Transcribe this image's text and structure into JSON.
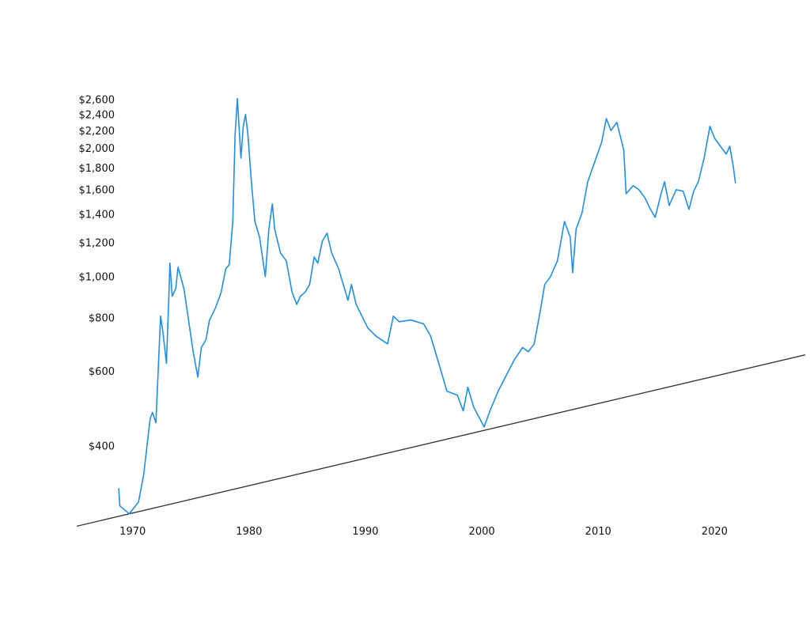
{
  "chart_data": {
    "type": "line",
    "title": "",
    "xlabel": "",
    "ylabel": "",
    "y_scale": "log",
    "xlim": [
      1958.6,
      2028.2
    ],
    "ylim": [
      156,
      4450
    ],
    "grid": false,
    "x_ticks": [
      1970,
      1980,
      1990,
      2000,
      2010,
      2020
    ],
    "x_tick_labels": [
      "1970",
      "1980",
      "1990",
      "2000",
      "2010",
      "2020"
    ],
    "y_ticks": [
      400,
      600,
      800,
      1000,
      1200,
      1400,
      1600,
      1800,
      2000,
      2200,
      2400,
      2600
    ],
    "y_tick_labels": [
      "$400",
      "$600",
      "$800",
      "$1,000",
      "$1,200",
      "$1,400",
      "$1,600",
      "$1,800",
      "$2,000",
      "$2,200",
      "$2,400",
      "$2,600"
    ],
    "series": [
      {
        "color": "#1e8fe6",
        "x": [
          1968.8,
          1968.9,
          1969.7,
          1970.5,
          1970.95,
          1971.5,
          1971.7,
          1972.0,
          1972.4,
          1972.6,
          1972.9,
          1973.1,
          1973.2,
          1973.4,
          1973.7,
          1973.9,
          1974.4,
          1974.9,
          1975.2,
          1975.6,
          1975.9,
          1976.3,
          1976.6,
          1977.1,
          1977.6,
          1978.0,
          1978.3,
          1978.6,
          1978.8,
          1979.0,
          1979.3,
          1979.5,
          1979.7,
          1979.9,
          1980.2,
          1980.5,
          1980.9,
          1981.4,
          1981.7,
          1982.0,
          1982.2,
          1982.7,
          1983.2,
          1983.7,
          1984.1,
          1984.4,
          1984.8,
          1985.2,
          1985.6,
          1985.9,
          1986.3,
          1986.7,
          1987.1,
          1987.7,
          1988.2,
          1988.5,
          1988.8,
          1989.2,
          1989.7,
          1990.2,
          1990.9,
          1991.9,
          1992.4,
          1992.9,
          1993.9,
          1995.0,
          1995.6,
          1996.3,
          1997.0,
          1997.9,
          1998.4,
          1998.8,
          1999.3,
          2000.2,
          2000.7,
          2001.4,
          2002.1,
          2002.8,
          2003.5,
          2004.0,
          2004.5,
          2005.0,
          2005.4,
          2005.9,
          2006.5,
          2007.1,
          2007.6,
          2007.8,
          2008.1,
          2008.6,
          2009.1,
          2009.7,
          2010.3,
          2010.7,
          2011.1,
          2011.6,
          2012.2,
          2012.4,
          2013.0,
          2013.5,
          2014.0,
          2014.5,
          2014.9,
          2015.4,
          2015.7,
          2016.1,
          2016.7,
          2017.3,
          2017.8,
          2018.2,
          2018.6,
          2019.1,
          2019.6,
          2020.0,
          2020.5,
          2021.0,
          2021.3,
          2021.6,
          2021.8
        ],
        "y": [
          318,
          289,
          277,
          295,
          343,
          463,
          479,
          453,
          806,
          740,
          624,
          878,
          1073,
          897,
          936,
          1050,
          936,
          756,
          665,
          580,
          680,
          710,
          789,
          841,
          916,
          1041,
          1064,
          1345,
          2153,
          2612,
          1893,
          2248,
          2399,
          2153,
          1666,
          1345,
          1235,
          998,
          1290,
          1478,
          1290,
          1134,
          1087,
          916,
          859,
          897,
          916,
          956,
          1110,
          1073,
          1209,
          1262,
          1134,
          1041,
          936,
          878,
          956,
          859,
          806,
          756,
          724,
          694,
          806,
          782,
          789,
          773,
          724,
          624,
          537,
          526,
          483,
          549,
          493,
          443,
          483,
          537,
          585,
          637,
          680,
          665,
          694,
          823,
          956,
          998,
          1087,
          1345,
          1235,
          1019,
          1290,
          1404,
          1666,
          1854,
          2063,
          2345,
          2198,
          2296,
          1977,
          1562,
          1631,
          1596,
          1530,
          1435,
          1375,
          1562,
          1666,
          1466,
          1596,
          1583,
          1435,
          1583,
          1666,
          1893,
          2248,
          2107,
          2019,
          1935,
          2019,
          1815,
          1652
        ]
      }
    ],
    "trendline": {
      "color": "#333333",
      "x": [
        1965.2,
        2027.8
      ],
      "y": [
        259,
        654
      ]
    }
  }
}
